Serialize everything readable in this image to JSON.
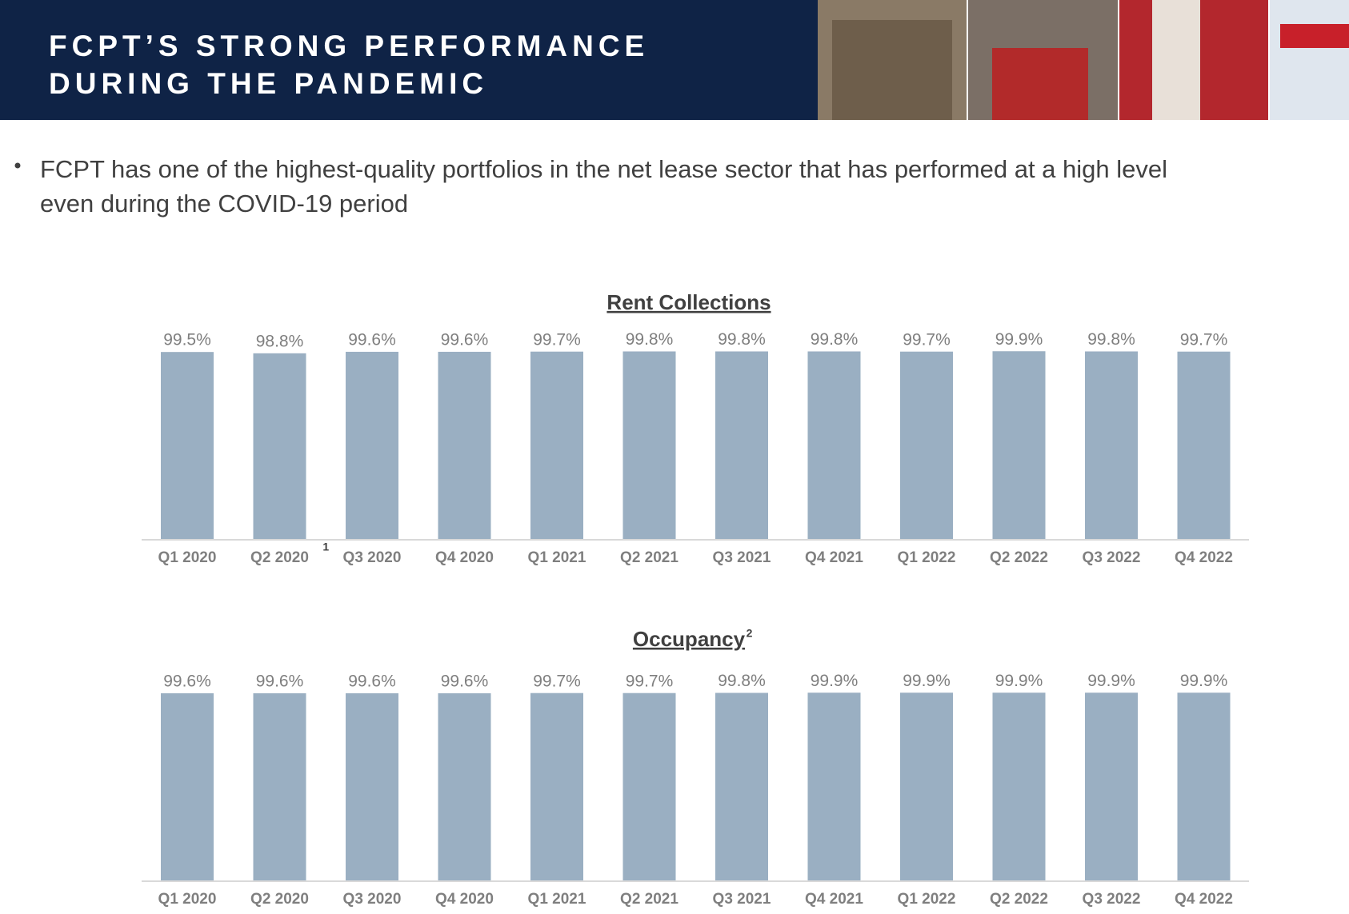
{
  "header": {
    "title_lines": [
      "FCPT’S STRONG PERFORMANCE",
      "DURING THE PANDEMIC"
    ]
  },
  "bullet": [
    "FCPT has one of the highest-quality portfolios in the net lease sector that has performed at a high level",
    "even during the COVID-19 period"
  ],
  "chart_data": [
    {
      "type": "bar",
      "title": "Rent Collections",
      "footnote": "1",
      "categories": [
        "Q1 2020",
        "Q2 2020",
        "Q3 2020",
        "Q4 2020",
        "Q1 2021",
        "Q2 2021",
        "Q3 2021",
        "Q4 2021",
        "Q1 2022",
        "Q2 2022",
        "Q3 2022",
        "Q4 2022"
      ],
      "values": [
        99.5,
        98.8,
        99.6,
        99.6,
        99.7,
        99.8,
        99.8,
        99.8,
        99.7,
        99.9,
        99.8,
        99.7
      ],
      "value_labels": [
        "99.5%",
        "98.8%",
        "99.6%",
        "99.6%",
        "99.7%",
        "99.8%",
        "99.8%",
        "99.8%",
        "99.7%",
        "99.9%",
        "99.8%",
        "99.7%"
      ],
      "color": "#9aafc2",
      "ylim": [
        0,
        100
      ]
    },
    {
      "type": "bar",
      "title": "Occupancy",
      "title_superscript": "2",
      "categories": [
        "Q1 2020",
        "Q2 2020",
        "Q3 2020",
        "Q4 2020",
        "Q1 2021",
        "Q2 2021",
        "Q3 2021",
        "Q4 2021",
        "Q1 2022",
        "Q2 2022",
        "Q3 2022",
        "Q4 2022"
      ],
      "values": [
        99.6,
        99.6,
        99.6,
        99.6,
        99.7,
        99.7,
        99.8,
        99.9,
        99.9,
        99.9,
        99.9,
        99.9
      ],
      "value_labels": [
        "99.6%",
        "99.6%",
        "99.6%",
        "99.6%",
        "99.7%",
        "99.7%",
        "99.8%",
        "99.9%",
        "99.9%",
        "99.9%",
        "99.9%",
        "99.9%"
      ],
      "color": "#9aafc2",
      "ylim": [
        0,
        100
      ]
    }
  ]
}
